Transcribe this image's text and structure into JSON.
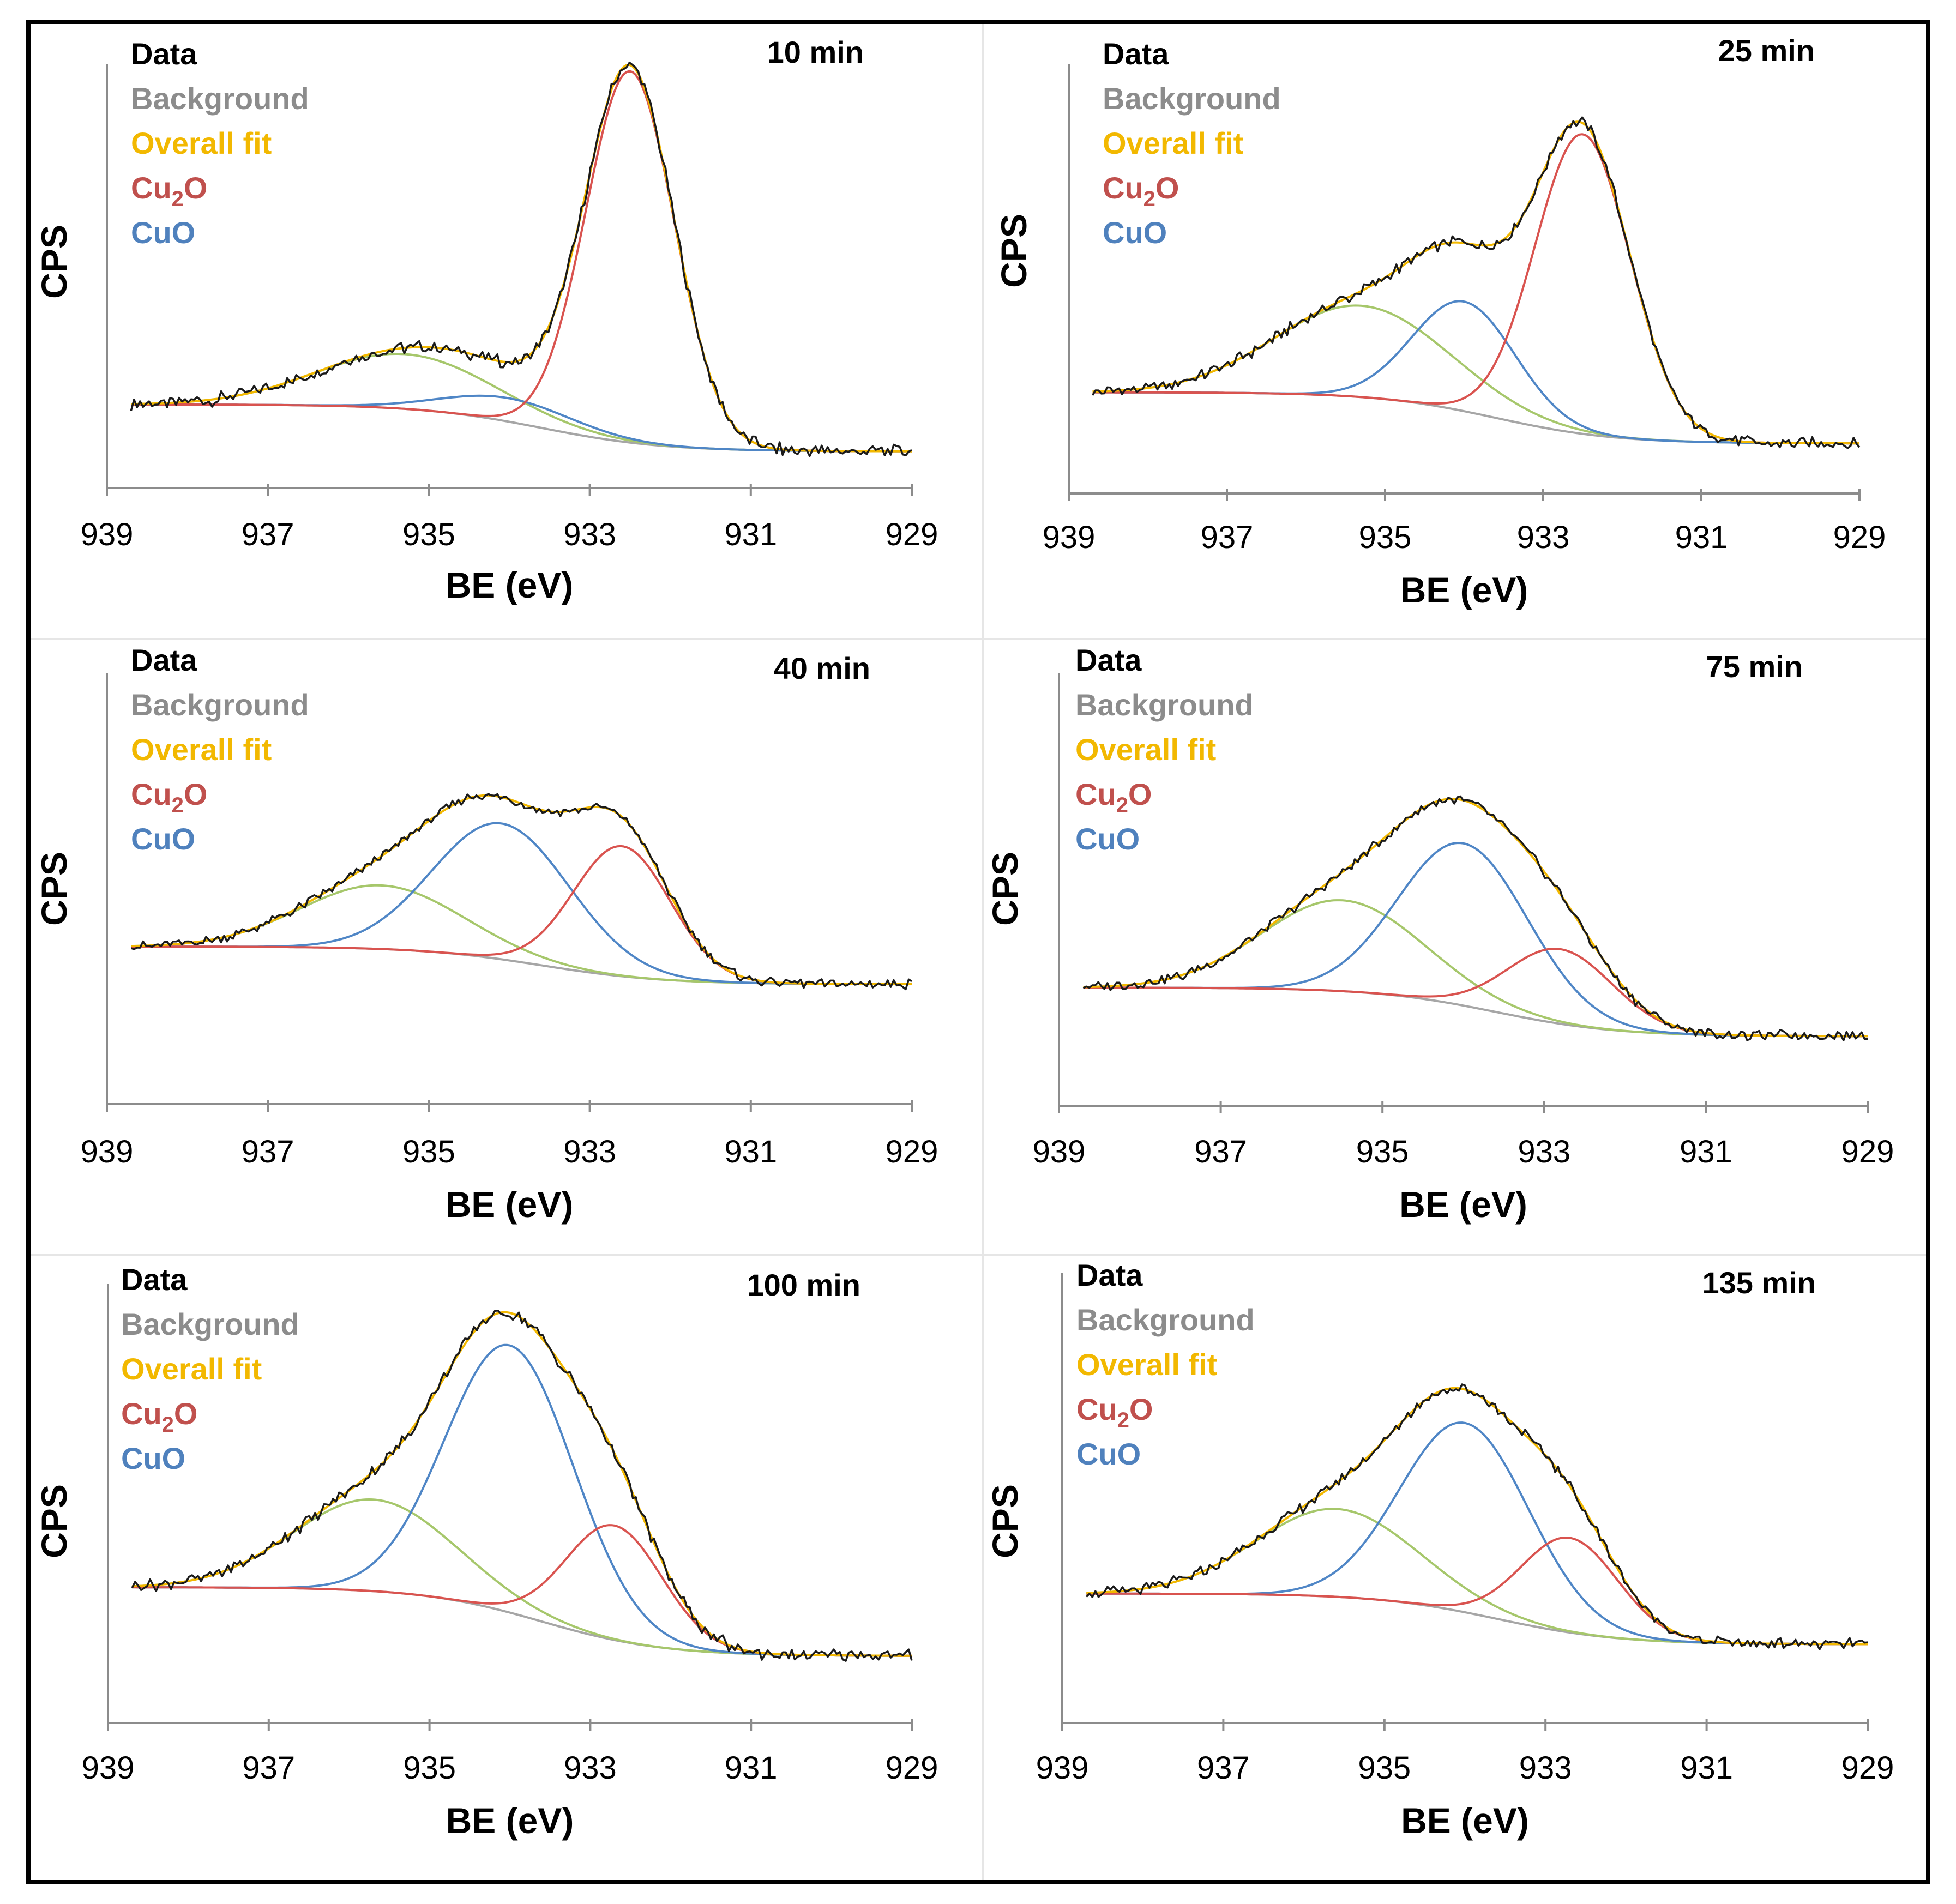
{
  "figure": {
    "border_color": "#000000"
  },
  "colors": {
    "data": "#1a1a1a",
    "background": "#a6a6a6",
    "overall": "#f2b800",
    "cu2o": "#d9534f",
    "cuo": "#4f86c6",
    "satellite": "#a6c76b",
    "legend_background_text": "#8c8c8c",
    "legend_overall_text": "#f2b800",
    "legend_cu2o_text": "#c0504d",
    "legend_cuo_text": "#4f81bd"
  },
  "legend": {
    "data": "Data",
    "background": "Background",
    "overall": "Overall fit",
    "cu2o_main": "Cu",
    "cu2o_sub": "2",
    "cu2o_end": "O",
    "cuo": "CuO"
  },
  "chart_data": [
    {
      "type": "line",
      "time_label": "10 min",
      "xlabel": "BE (eV)",
      "ylabel": "CPS",
      "xlim": [
        939,
        929
      ],
      "ylim": [
        0,
        100
      ],
      "xticks": [
        "939",
        "937",
        "935",
        "933",
        "931",
        "929"
      ],
      "baseline_high": 13,
      "baseline_low": 1,
      "peaks": {
        "satellite": {
          "center": 935.3,
          "height": 14,
          "sigma": 1.1
        },
        "cu2o": {
          "center": 932.5,
          "height": 95,
          "sigma": 0.55
        },
        "cuo": {
          "center": 934.0,
          "height": 6,
          "sigma": 0.8
        }
      }
    },
    {
      "type": "line",
      "time_label": "25 min",
      "xlabel": "BE (eV)",
      "ylabel": "CPS",
      "xlim": [
        939,
        929
      ],
      "ylim": [
        0,
        100
      ],
      "xticks": [
        "939",
        "937",
        "935",
        "933",
        "931",
        "929"
      ],
      "baseline_high": 15,
      "baseline_low": 1,
      "peaks": {
        "satellite": {
          "center": 935.3,
          "height": 25,
          "sigma": 1.1
        },
        "cu2o": {
          "center": 932.5,
          "height": 82,
          "sigma": 0.6
        },
        "cuo": {
          "center": 934.0,
          "height": 30,
          "sigma": 0.65
        }
      }
    },
    {
      "type": "line",
      "time_label": "40 min",
      "xlabel": "BE (eV)",
      "ylabel": "CPS",
      "xlim": [
        939,
        929
      ],
      "ylim": [
        0,
        100
      ],
      "xticks": [
        "939",
        "937",
        "935",
        "933",
        "931",
        "929"
      ],
      "baseline_high": 30,
      "baseline_low": 17,
      "peaks": {
        "satellite": {
          "center": 935.6,
          "height": 22,
          "sigma": 1.0
        },
        "cu2o": {
          "center": 932.6,
          "height": 45,
          "sigma": 0.6
        },
        "cuo": {
          "center": 934.1,
          "height": 47,
          "sigma": 0.85
        }
      }
    },
    {
      "type": "line",
      "time_label": "75 min",
      "xlabel": "BE (eV)",
      "ylabel": "CPS",
      "xlim": [
        939,
        929
      ],
      "ylim": [
        0,
        100
      ],
      "xticks": [
        "939",
        "937",
        "935",
        "933",
        "931",
        "929"
      ],
      "baseline_high": 25,
      "baseline_low": 10,
      "peaks": {
        "satellite": {
          "center": 935.5,
          "height": 28,
          "sigma": 1.0
        },
        "cu2o": {
          "center": 932.8,
          "height": 23,
          "sigma": 0.65
        },
        "cuo": {
          "center": 934.0,
          "height": 50,
          "sigma": 0.8
        }
      }
    },
    {
      "type": "line",
      "time_label": "100 min",
      "xlabel": "BE (eV)",
      "ylabel": "CPS",
      "xlim": [
        939,
        929
      ],
      "ylim": [
        0,
        100
      ],
      "xticks": [
        "939",
        "937",
        "935",
        "933",
        "931",
        "929"
      ],
      "baseline_high": 27,
      "baseline_low": 9,
      "peaks": {
        "satellite": {
          "center": 935.7,
          "height": 24,
          "sigma": 1.0
        },
        "cu2o": {
          "center": 932.7,
          "height": 30,
          "sigma": 0.6
        },
        "cuo": {
          "center": 934.0,
          "height": 70,
          "sigma": 0.8
        }
      }
    },
    {
      "type": "line",
      "time_label": "135 min",
      "xlabel": "BE (eV)",
      "ylabel": "CPS",
      "xlim": [
        939,
        929
      ],
      "ylim": [
        0,
        100
      ],
      "xticks": [
        "939",
        "937",
        "935",
        "933",
        "931",
        "929"
      ],
      "baseline_high": 27,
      "baseline_low": 12,
      "peaks": {
        "satellite": {
          "center": 935.6,
          "height": 26,
          "sigma": 1.0
        },
        "cu2o": {
          "center": 932.7,
          "height": 28,
          "sigma": 0.6
        },
        "cuo": {
          "center": 934.0,
          "height": 56,
          "sigma": 0.8
        }
      }
    }
  ]
}
